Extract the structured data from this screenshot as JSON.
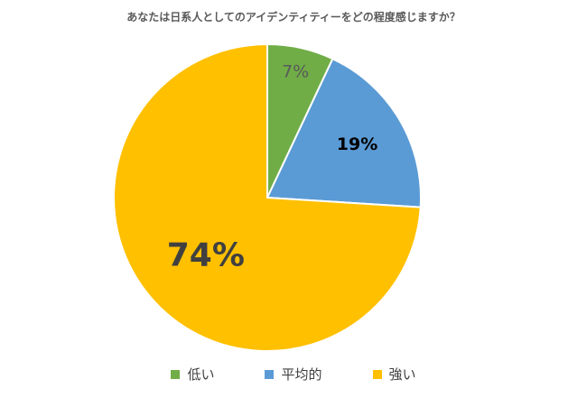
{
  "chart_data": {
    "type": "pie",
    "title": "あなたは日系人としてのアイデンティティーをどの程度感じますか？",
    "categories": [
      "低い",
      "平均的",
      "強い"
    ],
    "values": [
      7,
      19,
      74
    ],
    "labels": [
      "7%",
      "19%",
      "74%"
    ],
    "colors": [
      "#70AD47",
      "#5B9BD5",
      "#FFC000"
    ],
    "legend_position": "bottom"
  }
}
